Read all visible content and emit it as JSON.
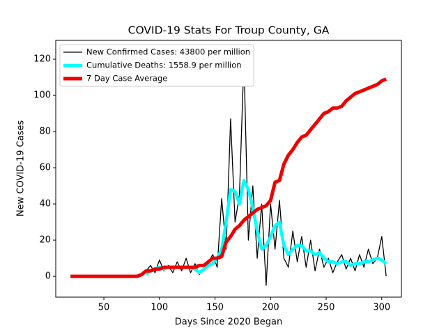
{
  "chart_data": {
    "type": "line",
    "title": "COVID-19 Stats For Troup County, GA",
    "x_label": "Days Since 2020 Began",
    "y_label": "New COVID-19 Cases",
    "x": [
      20,
      24,
      28,
      32,
      36,
      40,
      44,
      48,
      52,
      56,
      60,
      64,
      68,
      72,
      76,
      80,
      84,
      88,
      92,
      96,
      100,
      104,
      108,
      112,
      116,
      120,
      124,
      128,
      132,
      136,
      140,
      144,
      148,
      152,
      156,
      160,
      164,
      168,
      172,
      176,
      180,
      184,
      188,
      192,
      196,
      200,
      204,
      208,
      212,
      216,
      220,
      224,
      228,
      232,
      236,
      240,
      244,
      248,
      252,
      256,
      260,
      264,
      268,
      272,
      276,
      280,
      284,
      288,
      292,
      296,
      300,
      304
    ],
    "series": [
      {
        "name": "New Confirmed Cases: 43800 per million",
        "color": "#000000",
        "values": [
          0,
          0,
          0,
          0,
          0,
          0,
          0,
          0,
          0,
          0,
          0,
          0,
          0,
          0,
          0,
          0,
          1,
          3,
          6,
          2,
          9,
          3,
          6,
          2,
          8,
          3,
          10,
          2,
          7,
          1,
          5,
          8,
          12,
          5,
          43,
          15,
          87,
          30,
          45,
          120,
          20,
          50,
          10,
          40,
          -5,
          40,
          15,
          42,
          10,
          5,
          25,
          8,
          22,
          5,
          20,
          3,
          15,
          5,
          10,
          2,
          8,
          12,
          4,
          10,
          3,
          12,
          5,
          15,
          7,
          10,
          22,
          0
        ]
      },
      {
        "name": "Cumulative Deaths: 1558.9 per million",
        "color": "#00ffff",
        "values": [
          null,
          null,
          null,
          null,
          null,
          null,
          null,
          null,
          null,
          null,
          null,
          null,
          null,
          null,
          null,
          null,
          null,
          1,
          3,
          4,
          5,
          4,
          5,
          5,
          5,
          5,
          5,
          5,
          4,
          2,
          4,
          6,
          7,
          10,
          15,
          30,
          48,
          47,
          40,
          53,
          48,
          38,
          25,
          15,
          17,
          22,
          28,
          30,
          17,
          12,
          15,
          17,
          17,
          14,
          14,
          12,
          13,
          10,
          8,
          8,
          7,
          8,
          8,
          6,
          7,
          7,
          8,
          8,
          9,
          10,
          9,
          7
        ]
      },
      {
        "name": "7 Day Case Average",
        "color": "#ee0000",
        "values": [
          0,
          0,
          0,
          0,
          0,
          0,
          0,
          0,
          0,
          0,
          0,
          0,
          0,
          0,
          0,
          0,
          1,
          3,
          3,
          4,
          4,
          5,
          5,
          5,
          5,
          5,
          5,
          5,
          5,
          6,
          6,
          8,
          10,
          10,
          11,
          19,
          22,
          26,
          28,
          31,
          33,
          35,
          37,
          38,
          39,
          42,
          52,
          53,
          62,
          67,
          70,
          74,
          77,
          78,
          81,
          84,
          87,
          90,
          91,
          93,
          93,
          94,
          97,
          99,
          101,
          102,
          103,
          104,
          105,
          106,
          108,
          109
        ]
      }
    ],
    "xlim": [
      6.7,
      317.7
    ],
    "ylim": [
      -11.5,
      130.4
    ],
    "xticks": [
      50,
      100,
      150,
      200,
      250,
      300
    ],
    "yticks": [
      0,
      20,
      40,
      60,
      80,
      100,
      120
    ],
    "legend": "upper left"
  }
}
